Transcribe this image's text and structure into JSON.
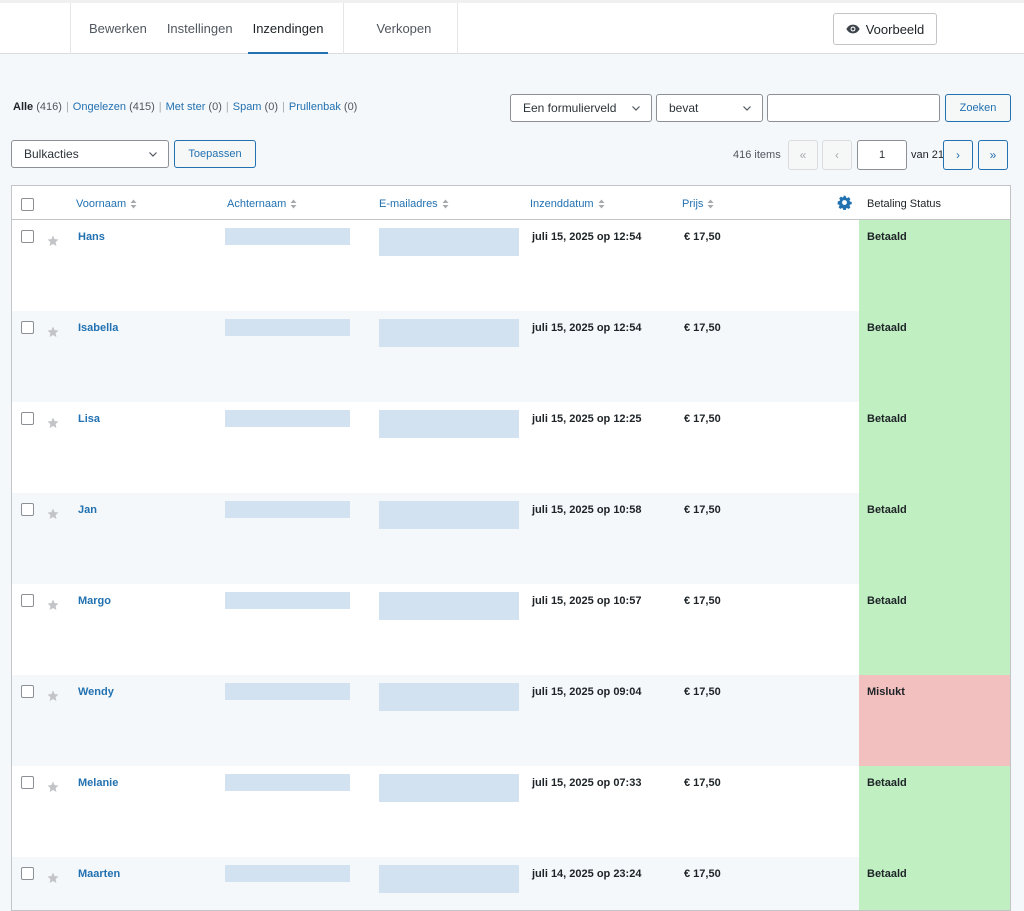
{
  "nav": {
    "tabs": [
      {
        "label": "Bewerken"
      },
      {
        "label": "Instellingen"
      },
      {
        "label": "Inzendingen",
        "active": true
      },
      {
        "label": "Verkopen"
      }
    ],
    "preview_label": "Voorbeeld"
  },
  "filters": {
    "views": [
      {
        "label": "Alle",
        "count": "(416)",
        "current": true
      },
      {
        "label": "Ongelezen",
        "count": "(415)"
      },
      {
        "label": "Met ster",
        "count": "(0)"
      },
      {
        "label": "Spam",
        "count": "(0)"
      },
      {
        "label": "Prullenbak",
        "count": "(0)"
      }
    ],
    "field_select": "Een formulierveld",
    "operator_select": "bevat",
    "search_value": "",
    "search_button": "Zoeken"
  },
  "bulk": {
    "select": "Bulkacties",
    "apply_button": "Toepassen"
  },
  "pagination": {
    "items": "416 items",
    "first": "«",
    "prev": "‹",
    "current_page": "1",
    "of_total": "van 21",
    "next": "›",
    "last": "»"
  },
  "table": {
    "columns": {
      "first_name": "Voornaam",
      "last_name": "Achternaam",
      "email": "E-mailadres",
      "date": "Inzenddatum",
      "price": "Prijs",
      "status": "Betaling Status"
    },
    "rows": [
      {
        "name": "Hans",
        "date": "juli 15, 2025 op 12:54",
        "price": "€ 17,50",
        "status": "Betaald",
        "paid": true
      },
      {
        "name": "Isabella",
        "date": "juli 15, 2025 op 12:54",
        "price": "€ 17,50",
        "status": "Betaald",
        "paid": true
      },
      {
        "name": "Lisa",
        "date": "juli 15, 2025 op 12:25",
        "price": "€ 17,50",
        "status": "Betaald",
        "paid": true
      },
      {
        "name": "Jan",
        "date": "juli 15, 2025 op 10:58",
        "price": "€ 17,50",
        "status": "Betaald",
        "paid": true
      },
      {
        "name": "Margo",
        "date": "juli 15, 2025 op 10:57",
        "price": "€ 17,50",
        "status": "Betaald",
        "paid": true
      },
      {
        "name": "Wendy",
        "date": "juli 15, 2025 op 09:04",
        "price": "€ 17,50",
        "status": "Mislukt",
        "paid": false
      },
      {
        "name": "Melanie",
        "date": "juli 15, 2025 op 07:33",
        "price": "€ 17,50",
        "status": "Betaald",
        "paid": true
      },
      {
        "name": "Maarten",
        "date": "juli 14, 2025 op 23:24",
        "price": "€ 17,50",
        "status": "Betaald",
        "paid": true
      }
    ]
  },
  "colors": {
    "accent": "#2271b1",
    "paid": "#c0efc1",
    "failed": "#f2c0bf",
    "redacted": "#d3e2f0"
  },
  "icons": [
    "eye-icon",
    "chevron-down-icon",
    "sort-icon",
    "gear-icon",
    "star-icon",
    "checkbox"
  ]
}
